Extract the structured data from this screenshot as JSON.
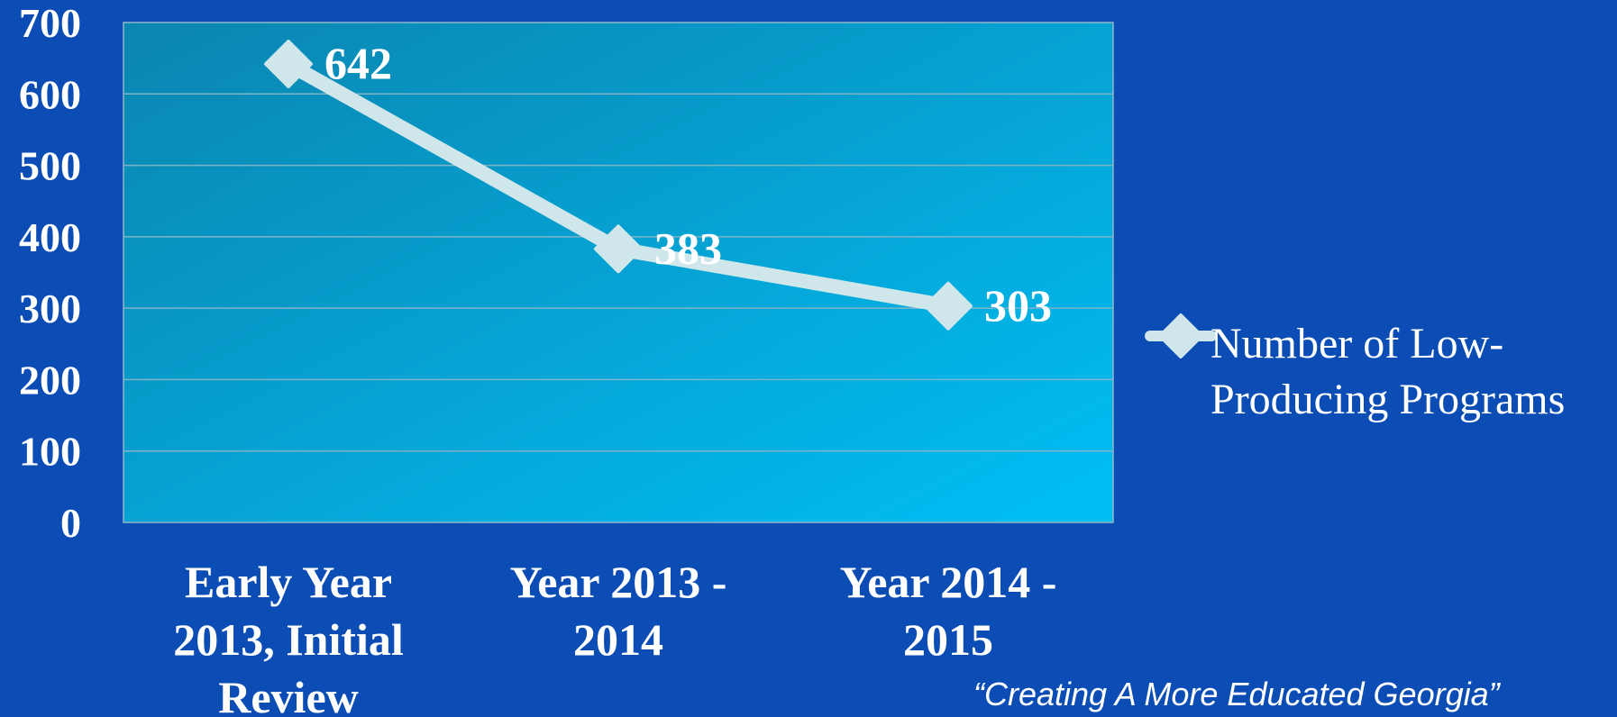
{
  "chart_data": {
    "type": "line",
    "categories": [
      [
        "Early Year",
        "2013, Initial",
        "Review"
      ],
      [
        "Year 2013 -",
        "2014"
      ],
      [
        "Year 2014 -",
        "2015"
      ]
    ],
    "series": [
      {
        "name": "Number of Low-Producing Programs",
        "legend_lines": [
          "Number of Low-",
          "Producing Programs"
        ],
        "values": [
          642,
          383,
          303
        ],
        "color": "#cfe6ea",
        "marker": "diamond"
      }
    ],
    "ylim": [
      0,
      700
    ],
    "yticks": [
      0,
      100,
      200,
      300,
      400,
      500,
      600,
      700
    ],
    "grid": true,
    "legend_position": "right",
    "plot_gradient": [
      "#0b85b0",
      "#00bff5"
    ],
    "background": "#0b4db5"
  },
  "footer": {
    "tagline": "“Creating A More Educated Georgia”"
  }
}
